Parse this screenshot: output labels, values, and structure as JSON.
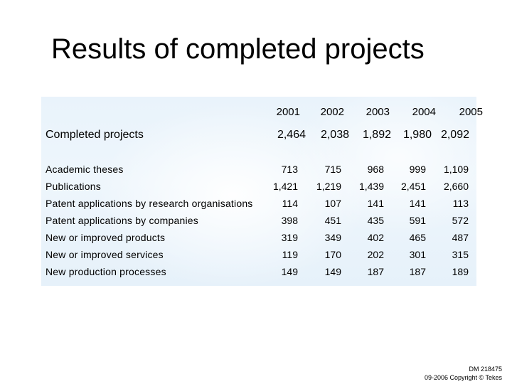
{
  "slide": {
    "title": "Results of completed projects"
  },
  "table": {
    "years": [
      "2001",
      "2002",
      "2003",
      "2004",
      "2005"
    ],
    "summary_label": "Completed projects",
    "summary_values": [
      "2,464",
      "2,038",
      "1,892",
      "1,980",
      "2,092"
    ],
    "rows": [
      {
        "label": "Academic theses",
        "values": [
          "713",
          "715",
          "968",
          "999",
          "1,109"
        ]
      },
      {
        "label": "Publications",
        "values": [
          "1,421",
          "1,219",
          "1,439",
          "2,451",
          "2,660"
        ]
      },
      {
        "label": "Patent applications by research organisations",
        "values": [
          "114",
          "107",
          "141",
          "141",
          "113"
        ]
      },
      {
        "label": "Patent applications by companies",
        "values": [
          "398",
          "451",
          "435",
          "591",
          "572"
        ]
      },
      {
        "label": "New or improved products",
        "values": [
          "319",
          "349",
          "402",
          "465",
          "487"
        ]
      },
      {
        "label": "New or improved services",
        "values": [
          "119",
          "170",
          "202",
          "301",
          "315"
        ]
      },
      {
        "label": "New production processes",
        "values": [
          "149",
          "149",
          "187",
          "187",
          "189"
        ]
      }
    ]
  },
  "footer": {
    "doc_id": "DM 218475",
    "copyright": "09-2006 Copyright © Tekes"
  }
}
